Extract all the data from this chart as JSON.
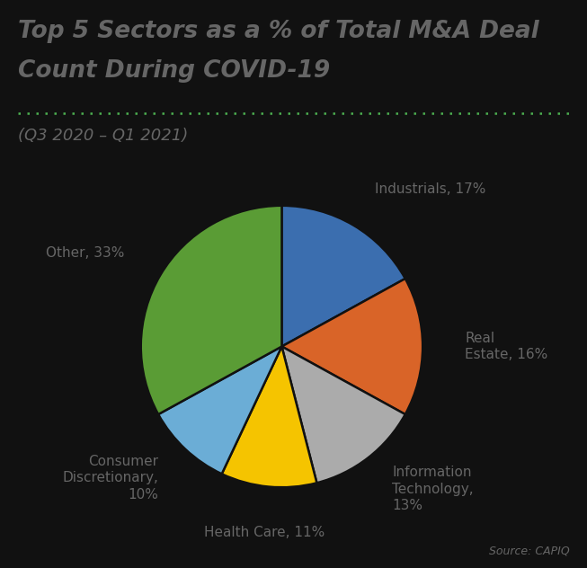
{
  "title_line1": "Top 5 Sectors as a % of Total M&A Deal",
  "title_line2": "Count During COVID-19",
  "subtitle": "(Q3 2020 – Q1 2021)",
  "source": "Source: CAPIQ",
  "values": [
    17,
    16,
    13,
    11,
    10,
    33
  ],
  "colors": [
    "#3B6EAF",
    "#D96428",
    "#ABABAB",
    "#F5C400",
    "#6BADD6",
    "#5A9C35"
  ],
  "background_color": "#111111",
  "text_color": "#666666",
  "dotted_line_color": "#4caf50",
  "wedge_edge_color": "#111111",
  "startangle": 90,
  "label_fontsize": 11,
  "title_fontsize": 19,
  "subtitle_fontsize": 13,
  "source_fontsize": 9
}
